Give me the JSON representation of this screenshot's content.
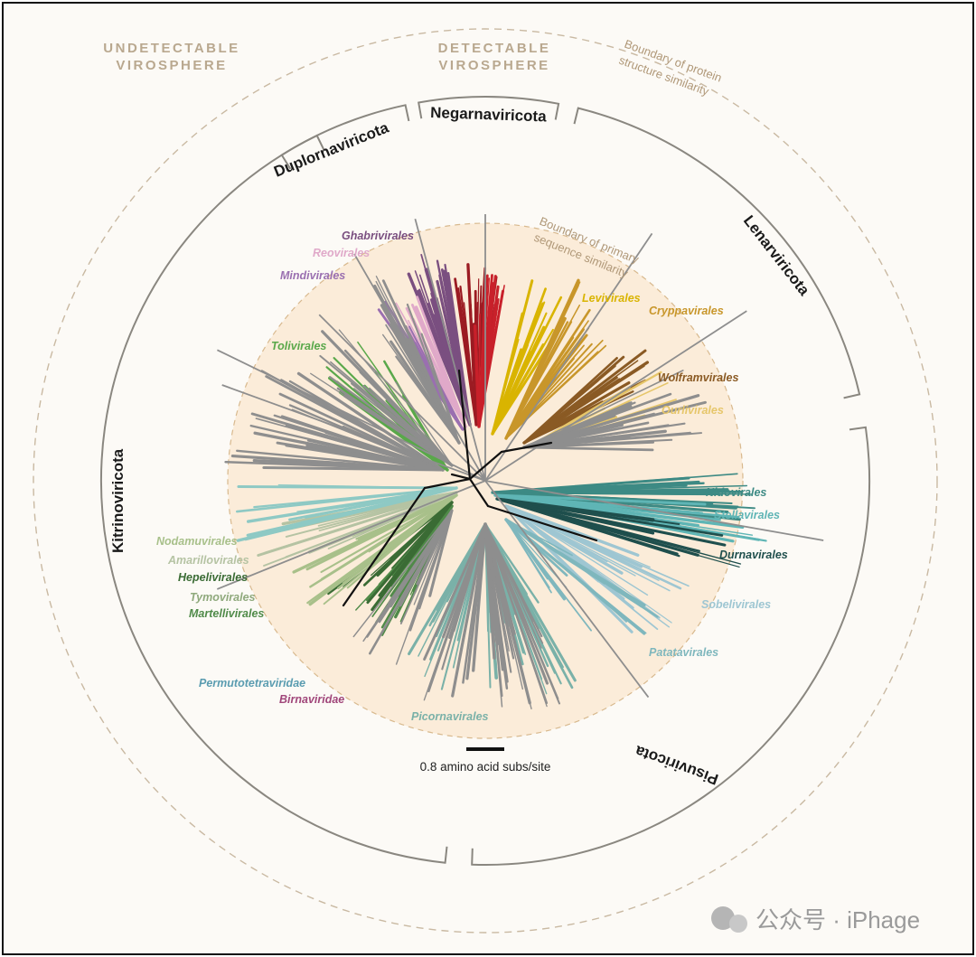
{
  "zones": {
    "undetectable": [
      "UNDETECTABLE",
      "VIROSPHERE"
    ],
    "detectable": [
      "DETECTABLE",
      "VIROSPHERE"
    ],
    "protein_boundary": [
      "Boundary of protein",
      "structure similarity"
    ],
    "sequence_boundary": [
      "Boundary of primary",
      "sequence similarity"
    ]
  },
  "phyla": {
    "negarnaviricota": "Negarnaviricota",
    "duplornaviricota": "Duplornaviricota",
    "lenarviricota": "Lenarviricota",
    "kitrinoviricota": "Kitrinoviricota",
    "pisuviricota": "Pisuviricota"
  },
  "orders": [
    {
      "label": "Ghabrivirales",
      "color": "#7a4f80"
    },
    {
      "label": "Reovirales",
      "color": "#e0a9c9"
    },
    {
      "label": "Mindivirales",
      "color": "#9a6fb0"
    },
    {
      "label": "Tolivirales",
      "color": "#59a84a"
    },
    {
      "label": "Levivirales",
      "color": "#d9b400"
    },
    {
      "label": "Cryppavirales",
      "color": "#c8962a"
    },
    {
      "label": "Wolframvirales",
      "color": "#8a5a24"
    },
    {
      "label": "Ourlivirales",
      "color": "#e6c66a"
    },
    {
      "label": "Nidovirales",
      "color": "#3d8a84"
    },
    {
      "label": "Stellavirales",
      "color": "#5fb5b5"
    },
    {
      "label": "Durnavirales",
      "color": "#1f4f4d"
    },
    {
      "label": "Sobelivirales",
      "color": "#9ec6d2"
    },
    {
      "label": "Patatavirales",
      "color": "#7fb7bd"
    },
    {
      "label": "Picornavirales",
      "color": "#7ab1a8"
    },
    {
      "label": "Nodamuvirales",
      "color": "#a8c08a"
    },
    {
      "label": "Amarillovirales",
      "color": "#b5c3a3"
    },
    {
      "label": "Hepelivirales",
      "color": "#3a6b34"
    },
    {
      "label": "Tymovirales",
      "color": "#8fa97c"
    },
    {
      "label": "Martellivirales",
      "color": "#4f8a48"
    },
    {
      "label": "Permutotetraviridae",
      "color": "#5a9cb0"
    },
    {
      "label": "Birnaviridae",
      "color": "#a0467a"
    }
  ],
  "scale_bar": {
    "label": "0.8 amino acid subs/site"
  },
  "watermark": {
    "text": "公众号 · iPhage"
  },
  "colors": {
    "background": "#fcfaf6",
    "inner_disc": "#fbecd9",
    "bracket": "#8a8780",
    "branch_gray": "#8e8e8e"
  }
}
